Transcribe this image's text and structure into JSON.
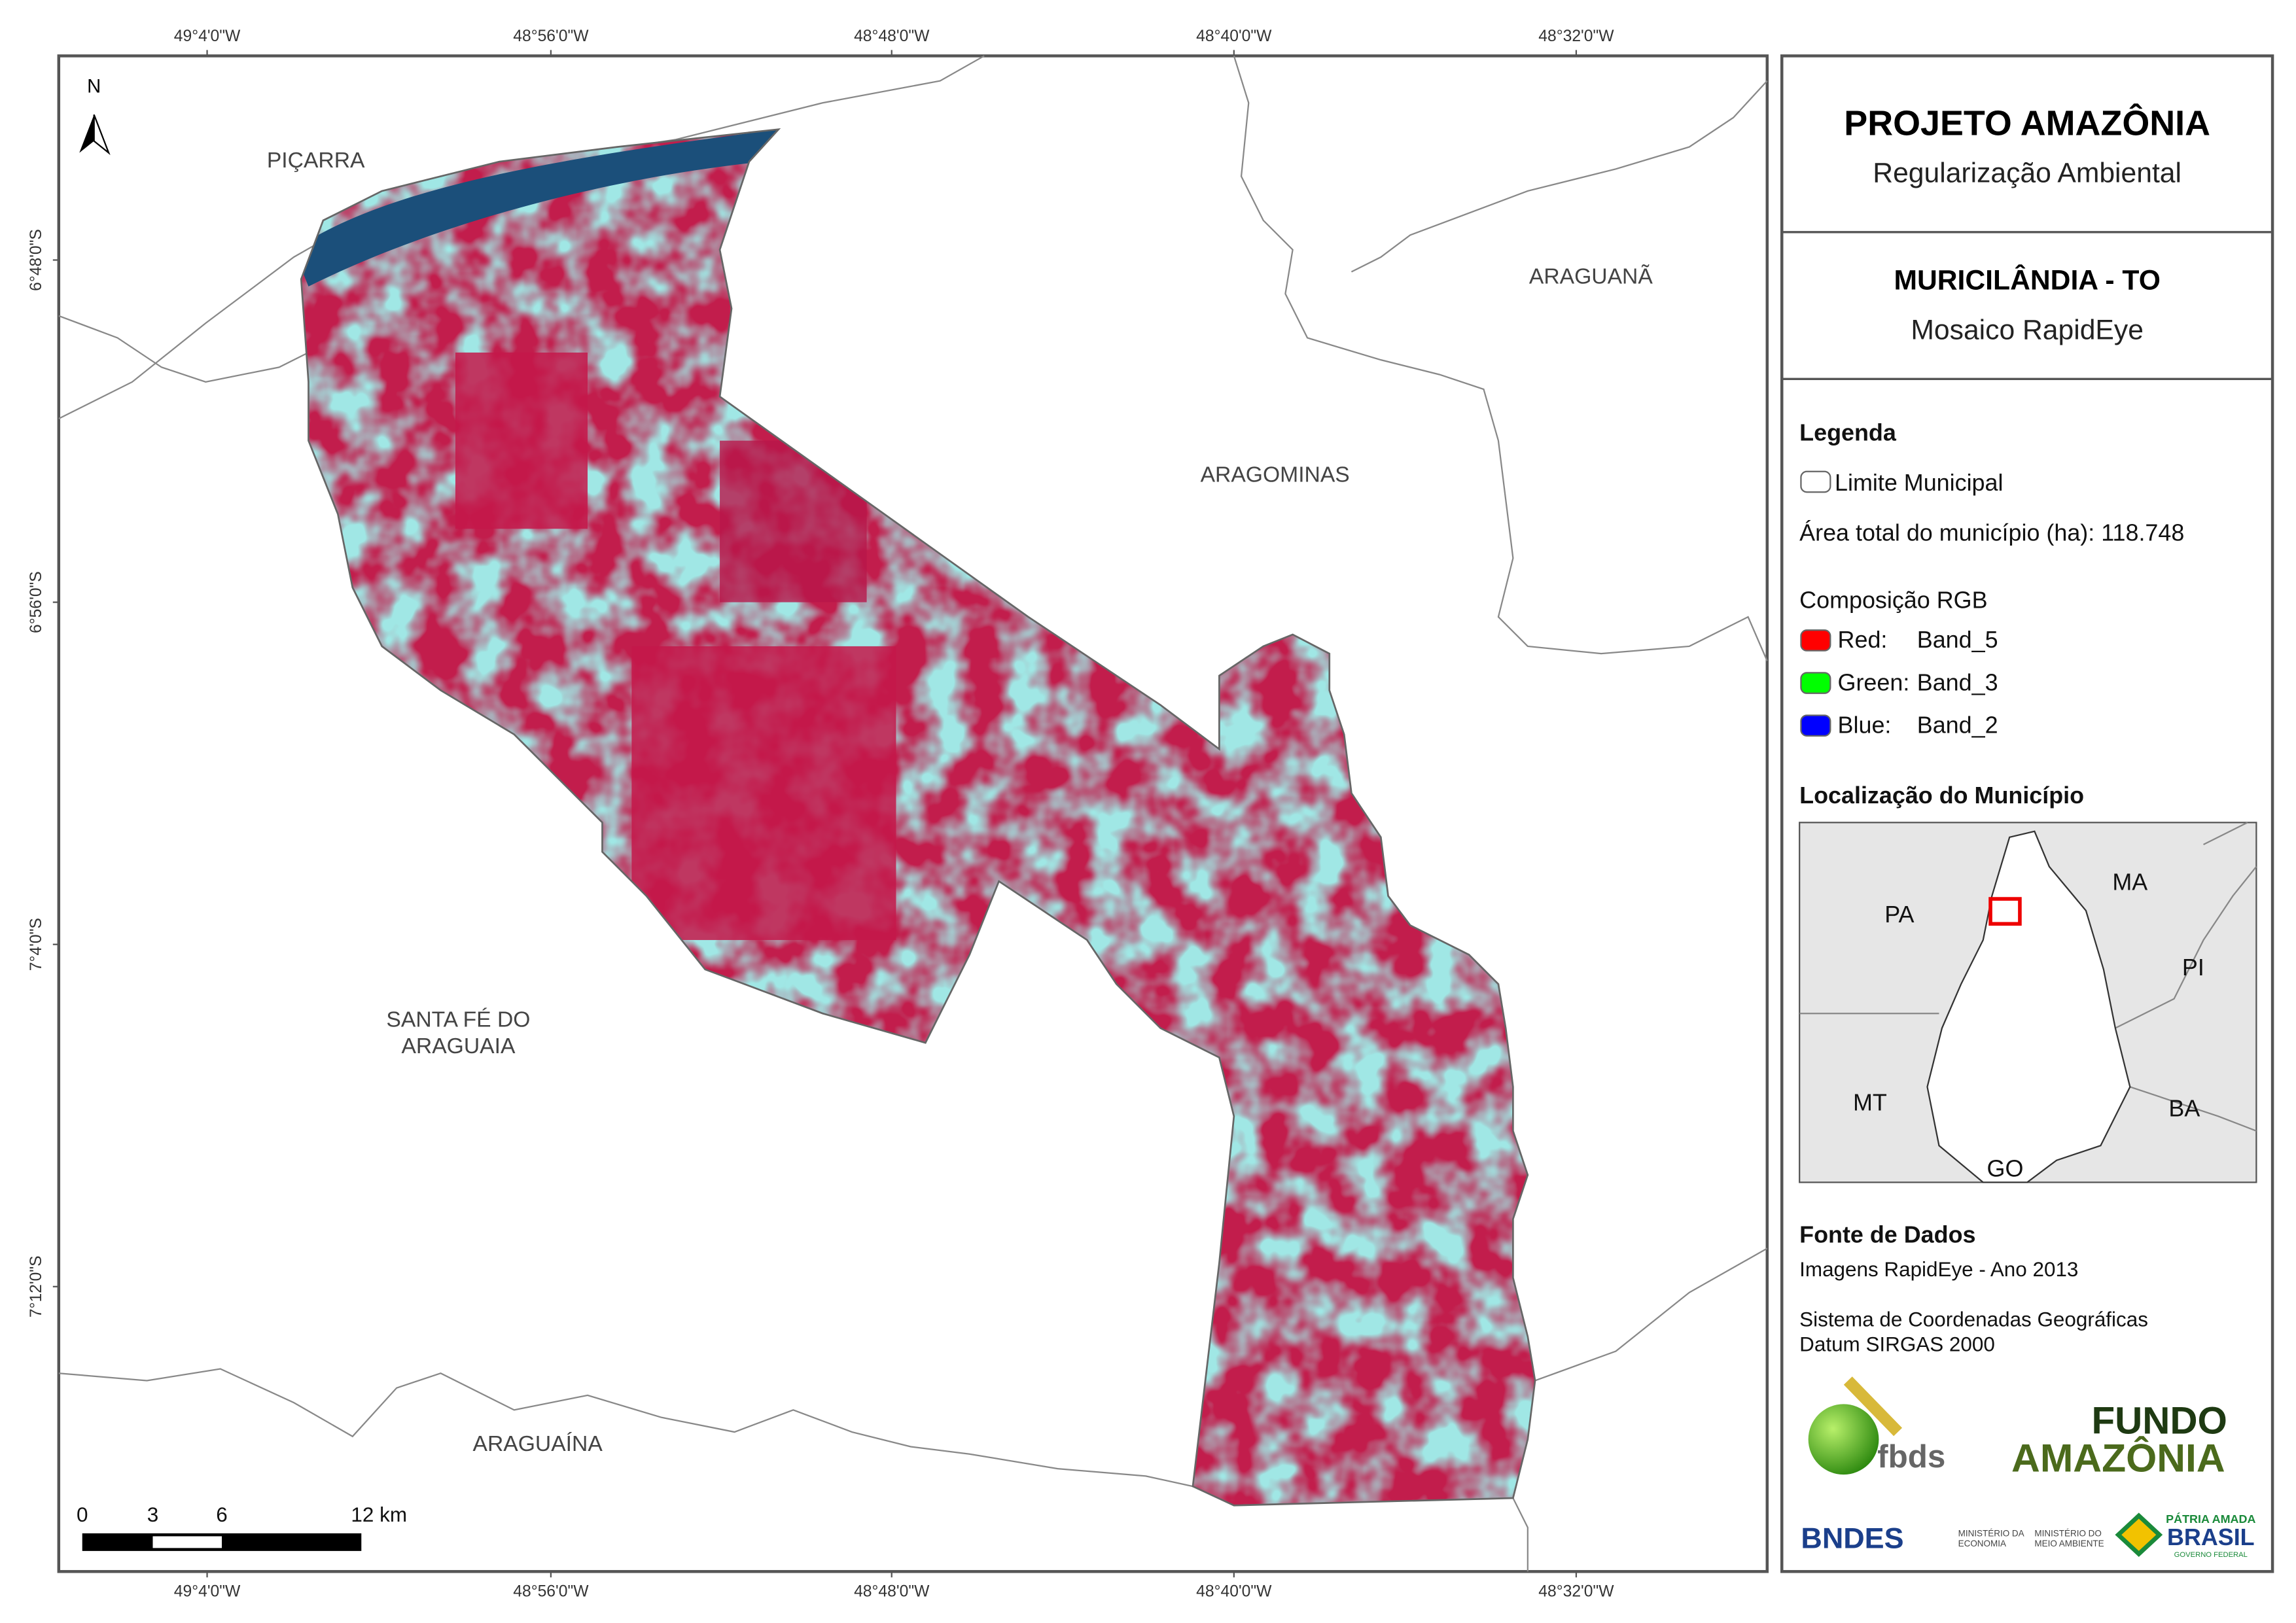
{
  "header": {
    "title": "PROJETO AMAZÔNIA",
    "subtitle": "Regularização Ambiental"
  },
  "municipality": {
    "name": "MURICILÂNDIA - TO",
    "product": "Mosaico RapidEye"
  },
  "legend": {
    "title": "Legenda",
    "boundary": "Limite Municipal",
    "area": "Área total do município (ha): 118.748",
    "rgb_title": "Composição RGB",
    "bands": [
      {
        "channel": "Red:",
        "band": "Band_5",
        "color": "#ff0000"
      },
      {
        "channel": "Green:",
        "band": "Band_3",
        "color": "#00ff00"
      },
      {
        "channel": "Blue:",
        "band": "Band_2",
        "color": "#0000ff"
      }
    ]
  },
  "location": {
    "title": "Localização do Município",
    "states": [
      "PA",
      "MA",
      "PI",
      "MT",
      "BA",
      "GO"
    ]
  },
  "sources": {
    "title": "Fonte de Dados",
    "lines": [
      "Imagens RapidEye - Ano 2013",
      "Sistema de Coordenadas Geográficas",
      "Datum SIRGAS 2000"
    ]
  },
  "logos": {
    "fbds": "fbds",
    "fundo": "FUNDO",
    "amazonia": "AMAZÔNIA",
    "bndes": "BNDES",
    "ministry_economy": [
      "MINISTÉRIO DA",
      "ECONOMIA"
    ],
    "ministry_environment": [
      "MINISTÉRIO DO",
      "MEIO AMBIENTE"
    ],
    "patria": "PÁTRIA AMADA",
    "brasil": "BRASIL",
    "governo": "GOVERNO FEDERAL"
  },
  "map": {
    "north": "N",
    "places": [
      "PIÇARRA",
      "ARAGUANÃ",
      "ARAGOMINAS",
      [
        "SANTA FÉ DO",
        "ARAGUAIA"
      ],
      "ARAGUAÍNA"
    ],
    "longitudes": [
      "49°4'0\"W",
      "48°56'0\"W",
      "48°48'0\"W",
      "48°40'0\"W",
      "48°32'0\"W"
    ],
    "latitudes": [
      "6°48'0\"S",
      "6°56'0\"S",
      "7°4'0\"S",
      "7°12'0\"S"
    ],
    "scale": [
      "0",
      "3",
      "6",
      "12 km"
    ]
  }
}
